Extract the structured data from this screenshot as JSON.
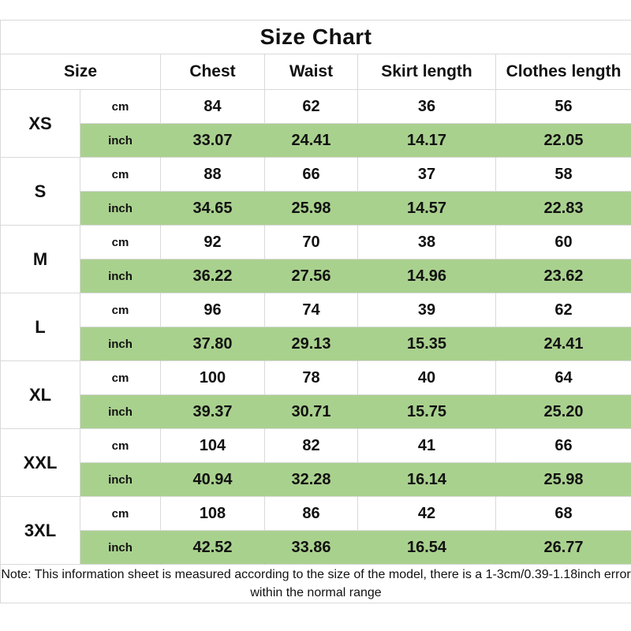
{
  "title": "Size Chart",
  "note": "Note: This information sheet is measured according to the size of the model, there is a 1-3cm/0.39-1.18inch error within the normal range",
  "colors": {
    "inch_band_green": "#a9d18e",
    "grid_border": "#d9d9d9",
    "table_text": "#111111",
    "note_text": "#3d3d3d"
  },
  "chart_data": {
    "type": "table",
    "title": "Size Chart",
    "columns": [
      "Size",
      "Chest",
      "Waist",
      "Skirt length",
      "Clothes length"
    ],
    "unit_labels": [
      "cm",
      "inch"
    ],
    "rows": [
      {
        "size": "XS",
        "cm": [
          "84",
          "62",
          "36",
          "56"
        ],
        "inch": [
          "33.07",
          "24.41",
          "14.17",
          "22.05"
        ]
      },
      {
        "size": "S",
        "cm": [
          "88",
          "66",
          "37",
          "58"
        ],
        "inch": [
          "34.65",
          "25.98",
          "14.57",
          "22.83"
        ]
      },
      {
        "size": "M",
        "cm": [
          "92",
          "70",
          "38",
          "60"
        ],
        "inch": [
          "36.22",
          "27.56",
          "14.96",
          "23.62"
        ]
      },
      {
        "size": "L",
        "cm": [
          "96",
          "74",
          "39",
          "62"
        ],
        "inch": [
          "37.80",
          "29.13",
          "15.35",
          "24.41"
        ]
      },
      {
        "size": "XL",
        "cm": [
          "100",
          "78",
          "40",
          "64"
        ],
        "inch": [
          "39.37",
          "30.71",
          "15.75",
          "25.20"
        ]
      },
      {
        "size": "XXL",
        "cm": [
          "104",
          "82",
          "41",
          "66"
        ],
        "inch": [
          "40.94",
          "32.28",
          "16.14",
          "25.98"
        ]
      },
      {
        "size": "3XL",
        "cm": [
          "108",
          "86",
          "42",
          "68"
        ],
        "inch": [
          "42.52",
          "33.86",
          "16.54",
          "26.77"
        ]
      }
    ],
    "note": "Note: This information sheet is measured according to the size of the model, there is a 1-3cm/0.39-1.18inch error within the normal range",
    "layout_hints": {
      "inch_rows_highlighted": true,
      "grid": true
    }
  }
}
